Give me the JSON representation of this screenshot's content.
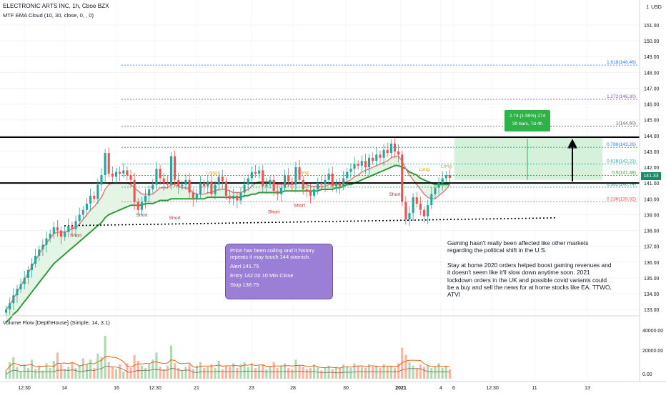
{
  "header": {
    "symbol_line": "ELECTRONIC ARTS INC, 1h, Cboe BZX",
    "indicator_line": "MTF EMA Cloud (10, 30, close, 0, , 0)",
    "volume_line": "Volume Flow [DepthHouse] (Simple, 14, 3.1)",
    "currency": "USD",
    "currency_count": "1"
  },
  "colors": {
    "bull": "#26a69a",
    "bear": "#ef5350",
    "ema_fast": "#e57373",
    "ema_slow": "#2e9b3a",
    "fib_blue": "#2979ff",
    "fib_purple": "#7e57c2",
    "fib_red": "#ef5350",
    "price_tag": "#138c6c"
  },
  "price_tag": "141.33",
  "projection_tag": {
    "line1": "2.74 (1.95%) 274",
    "line2": "39 bars, 7d 4h"
  },
  "note_box": {
    "headline": "Price has been coiling and it history repeats it may touch 144 soonish.",
    "alert": "Alert 141.75",
    "entry": "Entry 142.00 10 Min Close",
    "stop": "Stop 138.75"
  },
  "commentary": {
    "para1": "Gaming hasn't really been affected like other markets regarding the political shift in the U.S.",
    "para2": "Stay at home 2020 orders helped boost gaming revenues and it doesn't seem like it'll slow down anytime soon. 2021 lockdown orders in the UK and possible covid variants could be a buy and sell the news for at home stocks like EA, TTWO, ATVI"
  },
  "chart_data": {
    "type": "candlestick",
    "title": "ELECTRONIC ARTS INC, 1h, Cboe BZX",
    "price_axis": {
      "ylim": [
        132.6,
        152.4
      ],
      "ticks": [
        133,
        134,
        135,
        136,
        137,
        138,
        139,
        140,
        141,
        142,
        143,
        144,
        145,
        146,
        147,
        148,
        149,
        150,
        151
      ]
    },
    "x_axis": {
      "ticks": [
        "12:30",
        "14",
        "16",
        "12:30",
        "21",
        "23",
        "28",
        "30",
        "2021",
        "4",
        "6",
        "12:30",
        "11",
        "13"
      ]
    },
    "close_prices": [
      133.0,
      133.4,
      133.9,
      134.3,
      134.6,
      135.0,
      135.5,
      135.9,
      136.4,
      136.8,
      137.1,
      137.5,
      137.8,
      138.2,
      138.0,
      137.6,
      137.9,
      138.3,
      138.1,
      138.6,
      139.0,
      139.3,
      139.7,
      140.2,
      140.0,
      140.9,
      141.5,
      142.9,
      141.6,
      141.4,
      141.7,
      141.6,
      141.8,
      141.5,
      141.2,
      139.8,
      139.3,
      139.8,
      140.2,
      140.6,
      140.9,
      141.9,
      141.3,
      141.0,
      140.9,
      142.7,
      141.2,
      140.8,
      140.9,
      141.2,
      140.4,
      140.0,
      140.3,
      141.0,
      140.8,
      141.1,
      140.3,
      140.9,
      141.4,
      141.1,
      140.2,
      140.0,
      140.2,
      139.9,
      140.4,
      140.9,
      141.3,
      141.7,
      141.6,
      141.8,
      140.8,
      140.9,
      141.2,
      140.5,
      140.3,
      140.7,
      141.5,
      141.1,
      140.9,
      142.0,
      141.2,
      140.6,
      140.5,
      140.2,
      140.6,
      141.0,
      140.9,
      141.2,
      141.6,
      140.8,
      141.0,
      140.8,
      141.3,
      141.7,
      141.9,
      142.2,
      142.1,
      142.4,
      142.0,
      142.6,
      142.4,
      142.8,
      142.6,
      143.1,
      142.9,
      143.5,
      143.0,
      142.8,
      139.8,
      138.7,
      139.1,
      140.1,
      139.7,
      139.3,
      138.9,
      139.6,
      140.3,
      140.7,
      141.0,
      141.3,
      141.5,
      141.33
    ],
    "ema_fast": [
      133.0,
      133.3,
      133.7,
      134.1,
      134.5,
      134.9,
      135.3,
      135.7,
      136.1,
      136.5,
      136.9,
      137.2,
      137.5,
      137.8,
      137.9,
      137.9,
      137.9,
      138.0,
      138.1,
      138.2,
      138.4,
      138.7,
      139.0,
      139.3,
      139.5,
      139.8,
      140.1,
      140.6,
      140.9,
      141.0,
      141.0,
      141.0,
      141.0,
      141.0,
      140.9,
      140.7,
      140.5,
      140.3,
      140.3,
      140.3,
      140.3,
      140.5,
      140.7,
      140.7,
      140.7,
      140.9,
      140.9,
      140.8,
      140.7,
      140.7,
      140.6,
      140.4,
      140.3,
      140.3,
      140.3,
      140.4,
      140.4,
      140.5,
      140.6,
      140.6,
      140.6,
      140.5,
      140.4,
      140.4,
      140.4,
      140.5,
      140.6,
      140.8,
      141.0,
      141.1,
      141.1,
      141.1,
      141.1,
      141.0,
      140.9,
      140.9,
      140.9,
      140.9,
      140.9,
      141.0,
      141.0,
      141.0,
      140.9,
      140.8,
      140.8,
      140.8,
      140.8,
      140.8,
      140.9,
      140.9,
      140.9,
      140.9,
      141.0,
      141.1,
      141.2,
      141.4,
      141.5,
      141.7,
      141.8,
      141.9,
      142.0,
      142.1,
      142.2,
      142.3,
      142.4,
      142.6,
      142.7,
      142.7,
      142.4,
      141.9,
      141.5,
      141.2,
      140.9,
      140.6,
      140.3,
      140.1,
      140.0,
      140.0,
      140.2,
      140.4,
      140.6,
      140.9
    ],
    "ema_slow": [
      132.2,
      132.4,
      132.7,
      132.9,
      133.2,
      133.5,
      133.8,
      134.1,
      134.4,
      134.7,
      135.0,
      135.3,
      135.6,
      135.9,
      136.1,
      136.3,
      136.5,
      136.7,
      136.9,
      137.1,
      137.3,
      137.5,
      137.7,
      137.9,
      138.1,
      138.3,
      138.5,
      138.8,
      139.0,
      139.1,
      139.2,
      139.3,
      139.4,
      139.5,
      139.6,
      139.6,
      139.6,
      139.6,
      139.7,
      139.7,
      139.7,
      139.8,
      139.9,
      139.9,
      139.9,
      140.0,
      140.0,
      140.0,
      140.0,
      140.0,
      140.0,
      140.0,
      140.0,
      140.0,
      140.0,
      140.1,
      140.1,
      140.1,
      140.1,
      140.1,
      140.1,
      140.1,
      140.1,
      140.1,
      140.1,
      140.2,
      140.2,
      140.3,
      140.3,
      140.4,
      140.4,
      140.4,
      140.4,
      140.4,
      140.4,
      140.4,
      140.5,
      140.5,
      140.5,
      140.5,
      140.5,
      140.5,
      140.5,
      140.5,
      140.5,
      140.5,
      140.6,
      140.6,
      140.6,
      140.6,
      140.7,
      140.7,
      140.8,
      140.9,
      140.9,
      141.0,
      141.1,
      141.2,
      141.3,
      141.4,
      141.5,
      141.6,
      141.7,
      141.8,
      141.9,
      142.0,
      142.1,
      142.1,
      142.0,
      141.9,
      141.7,
      141.6,
      141.5,
      141.3,
      141.2,
      141.1,
      141.0,
      140.9,
      140.9,
      140.9,
      140.9,
      140.9
    ],
    "fib_levels": [
      {
        "label": "1.618(148.46)",
        "value": 148.46,
        "color": "#2979ff"
      },
      {
        "label": "1.272(146.30)",
        "value": 146.3,
        "color": "#7e57c2"
      },
      {
        "label": "1(144.60)",
        "value": 144.6,
        "color": "#555555"
      },
      {
        "label": "0.786(143.26)",
        "value": 143.26,
        "color": "#2979ff"
      },
      {
        "label": "0.618(142.21)",
        "value": 142.21,
        "color": "#26a69a"
      },
      {
        "label": "0.5(141.48)",
        "value": 141.48,
        "color": "#2e9b3a"
      },
      {
        "label": "0.382(140.74)",
        "value": 140.74,
        "color": "#26a69a"
      },
      {
        "label": "0.236(139.82)",
        "value": 139.82,
        "color": "#ef5350"
      }
    ],
    "horizontal_lines": [
      143.9,
      141.0
    ],
    "support_trend": {
      "from": 138.3,
      "to": 138.8
    },
    "signals": [
      {
        "text": "Short",
        "bar": 19,
        "value": 138.0
      },
      {
        "text": "Short",
        "bar": 37,
        "value": 139.3
      },
      {
        "text": "Short",
        "bar": 46,
        "value": 139.1
      },
      {
        "text": "Short",
        "bar": 73,
        "value": 139.5
      },
      {
        "text": "Short",
        "bar": 80,
        "value": 139.9
      },
      {
        "text": "Short",
        "bar": 106,
        "value": 140.6
      },
      {
        "text": "Long",
        "bar": 56,
        "value": 141.4
      },
      {
        "text": "Long",
        "bar": 81,
        "value": 141.4
      },
      {
        "text": "Long",
        "bar": 114,
        "value": 141.6
      },
      {
        "text": "Long",
        "bar": 120,
        "value": 141.8
      }
    ],
    "volume_axis": {
      "ticks": [
        "40000.00",
        "20000.00",
        "0.00"
      ]
    },
    "volume": [
      7,
      14,
      18,
      10,
      6,
      12,
      9,
      16,
      8,
      11,
      7,
      13,
      9,
      15,
      22,
      12,
      8,
      10,
      14,
      9,
      11,
      17,
      12,
      16,
      9,
      21,
      18,
      36,
      14,
      10,
      8,
      12,
      6,
      13,
      9,
      20,
      15,
      11,
      9,
      12,
      16,
      22,
      10,
      8,
      11,
      28,
      13,
      9,
      7,
      10,
      12,
      8,
      11,
      14,
      9,
      10,
      12,
      9,
      15,
      8,
      11,
      10,
      13,
      9,
      12,
      14,
      10,
      13,
      9,
      11,
      12,
      8,
      10,
      14,
      9,
      11,
      13,
      9,
      8,
      16,
      11,
      10,
      8,
      9,
      12,
      10,
      7,
      9,
      11,
      8,
      10,
      9,
      12,
      10,
      9,
      13,
      11,
      10,
      9,
      12,
      10,
      11,
      9,
      12,
      10,
      11,
      9,
      13,
      26,
      20,
      14,
      11,
      9,
      12,
      10,
      11,
      9,
      10,
      13,
      9,
      11,
      8
    ]
  }
}
